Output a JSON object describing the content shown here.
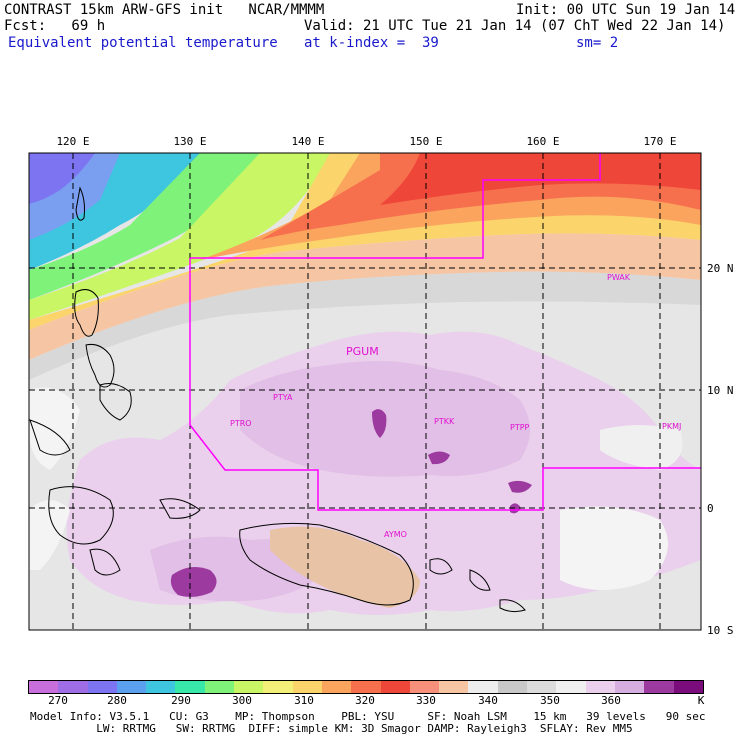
{
  "header": {
    "line1_left": "CONTRAST 15km ARW-GFS init   NCAR/MMMM",
    "line1_right": "Init: 00 UTC Sun 19 Jan 14",
    "fcst": "Fcst:   69 h",
    "valid": "Valid: 21 UTC Tue 21 Jan 14 (07 ChT Wed 22 Jan 14)",
    "field": "Equivalent potential temperature",
    "level": "at k-index =  39",
    "smooth": "sm= 2"
  },
  "map": {
    "lon_labels": [
      "120 E",
      "130 E",
      "140 E",
      "150 E",
      "160 E",
      "170 E"
    ],
    "lat_labels": [
      "20 N",
      "10 N",
      "0",
      "10 S"
    ],
    "stations": [
      "PTYA",
      "PGUM",
      "PTRO",
      "PTKK",
      "PTPP",
      "PKMJ",
      "PWAK",
      "AYMO"
    ],
    "colors": {
      "border": "#ff00ff",
      "grid": "#000000"
    }
  },
  "colorbar": {
    "tick_labels": [
      "270",
      "280",
      "290",
      "300",
      "310",
      "320",
      "330",
      "340",
      "350",
      "360",
      "K"
    ],
    "colors": [
      "#c86fdc",
      "#9f6de6",
      "#7c74f0",
      "#5aa0ef",
      "#3ec6e0",
      "#37e8a8",
      "#7ff27a",
      "#c9f664",
      "#f3f07a",
      "#fbd46b",
      "#fba45e",
      "#f6704d",
      "#ee4638",
      "#f6907a",
      "#f6c6a4",
      "#ededed",
      "#c8c8c8",
      "#dcdcdc",
      "#f0f0f0",
      "#ead0ec",
      "#d6aee0",
      "#9c3aa0",
      "#7a0c7c"
    ]
  },
  "footer": {
    "line1": "Model Info: V3.5.1   CU: G3    MP: Thompson    PBL: YSU     SF: Noah LSM    15 km   39 levels   90 sec",
    "line2": "          LW: RRTMG   SW: RRTMG  DIFF: simple KM: 3D Smagor DAMP: Rayleigh3  SFLAY: Rev MM5"
  }
}
